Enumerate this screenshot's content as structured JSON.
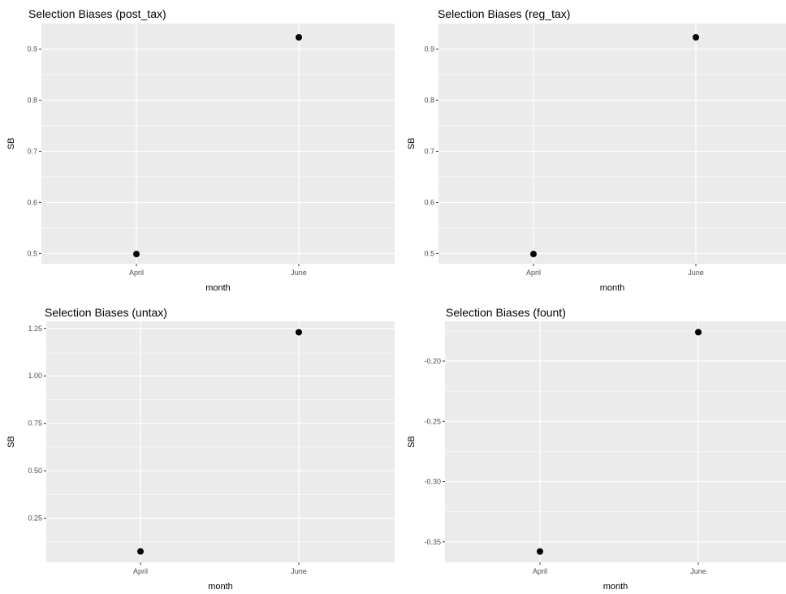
{
  "chart_data": [
    {
      "type": "scatter",
      "title": "Selection Biases (post_tax)",
      "xlabel": "month",
      "ylabel": "SB",
      "categories": [
        "April",
        "June"
      ],
      "values": [
        0.499,
        0.923
      ],
      "ylim": [
        0.48,
        0.95
      ],
      "yticks": [
        0.5,
        0.6,
        0.7,
        0.8,
        0.9
      ],
      "ytick_labels": [
        "0.5",
        "0.6",
        "0.7",
        "0.8",
        "0.9"
      ],
      "grid": true,
      "background": "#ebebeb",
      "point_color": "#000000"
    },
    {
      "type": "scatter",
      "title": "Selection Biases (reg_tax)",
      "xlabel": "month",
      "ylabel": "SB",
      "categories": [
        "April",
        "June"
      ],
      "values": [
        0.499,
        0.923
      ],
      "ylim": [
        0.48,
        0.95
      ],
      "yticks": [
        0.5,
        0.6,
        0.7,
        0.8,
        0.9
      ],
      "ytick_labels": [
        "0.5",
        "0.6",
        "0.7",
        "0.8",
        "0.9"
      ],
      "grid": true,
      "background": "#ebebeb",
      "point_color": "#000000"
    },
    {
      "type": "scatter",
      "title": "Selection Biases (untax)",
      "xlabel": "month",
      "ylabel": "SB",
      "categories": [
        "April",
        "June"
      ],
      "values": [
        0.075,
        1.23
      ],
      "ylim": [
        0.0175,
        1.2875
      ],
      "yticks": [
        0.25,
        0.5,
        0.75,
        1.0,
        1.25
      ],
      "ytick_labels": [
        "0.25",
        "0.50",
        "0.75",
        "1.00",
        "1.25"
      ],
      "grid": true,
      "background": "#ebebeb",
      "point_color": "#000000"
    },
    {
      "type": "scatter",
      "title": "Selection Biases (fount)",
      "xlabel": "month",
      "ylabel": "SB",
      "categories": [
        "April",
        "June"
      ],
      "values": [
        -0.358,
        -0.176
      ],
      "ylim": [
        -0.367,
        -0.167
      ],
      "yticks": [
        -0.35,
        -0.3,
        -0.25,
        -0.2
      ],
      "ytick_labels": [
        "-0.35",
        "-0.30",
        "-0.25",
        "-0.20"
      ],
      "grid": true,
      "background": "#ebebeb",
      "point_color": "#000000"
    }
  ]
}
